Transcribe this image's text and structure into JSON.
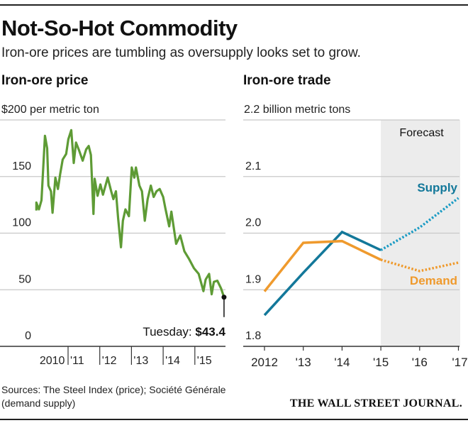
{
  "title": "Not-So-Hot Commodity",
  "subtitle": "Iron-ore prices are tumbling as oversupply looks set to grow.",
  "sources": [
    "Sources: The Steel Index (price); Société Générale",
    "(demand supply)"
  ],
  "publisher": "THE WALL STREET JOURNAL.",
  "colors": {
    "price": "#5e9b35",
    "supply": "#13789a",
    "supply_forecast": "#1a9bc4",
    "demand": "#ef9a2d",
    "forecast_shade": "#ececec",
    "grid": "#c8c8c8"
  },
  "chart_data": [
    {
      "type": "line",
      "title": "Iron-ore price",
      "ylabel": "$200 per metric ton",
      "ylim": [
        0,
        200
      ],
      "yticks": [
        {
          "v": 0,
          "label": "0"
        },
        {
          "v": 50,
          "label": "50"
        },
        {
          "v": 100,
          "label": "100"
        },
        {
          "v": 150,
          "label": "150"
        },
        {
          "v": 200,
          "label": "$200 per metric ton"
        }
      ],
      "xlim": [
        2010,
        2015.95
      ],
      "xticks": [
        {
          "v": 2010.5,
          "label": "2010",
          "tick": false
        },
        {
          "v": 2011,
          "label": "'11"
        },
        {
          "v": 2012,
          "label": "'12"
        },
        {
          "v": 2013,
          "label": "'13"
        },
        {
          "v": 2014,
          "label": "'14"
        },
        {
          "v": 2015,
          "label": "'15"
        }
      ],
      "annotation": {
        "prefix": "Tuesday: ",
        "value_label": "$43.4",
        "x": 2015.92,
        "y": 43.4
      },
      "series": [
        {
          "name": "Iron-ore price",
          "points": [
            [
              2010.0,
              120
            ],
            [
              2010.0,
              127
            ],
            [
              2010.08,
              121
            ],
            [
              2010.16,
              129
            ],
            [
              2010.27,
              186
            ],
            [
              2010.34,
              175
            ],
            [
              2010.38,
              142
            ],
            [
              2010.46,
              137
            ],
            [
              2010.51,
              118
            ],
            [
              2010.6,
              149
            ],
            [
              2010.68,
              139
            ],
            [
              2010.75,
              152
            ],
            [
              2010.83,
              165
            ],
            [
              2010.94,
              170
            ],
            [
              2011.01,
              183
            ],
            [
              2011.1,
              191
            ],
            [
              2011.18,
              162
            ],
            [
              2011.25,
              180
            ],
            [
              2011.35,
              173
            ],
            [
              2011.46,
              164
            ],
            [
              2011.57,
              174
            ],
            [
              2011.65,
              177
            ],
            [
              2011.72,
              169
            ],
            [
              2011.8,
              117
            ],
            [
              2011.84,
              148
            ],
            [
              2011.93,
              133
            ],
            [
              2012.02,
              143
            ],
            [
              2012.1,
              134
            ],
            [
              2012.25,
              149
            ],
            [
              2012.36,
              137
            ],
            [
              2012.43,
              130
            ],
            [
              2012.51,
              137
            ],
            [
              2012.58,
              113
            ],
            [
              2012.67,
              87.5
            ],
            [
              2012.73,
              111
            ],
            [
              2012.81,
              121
            ],
            [
              2012.92,
              115
            ],
            [
              2013.01,
              158
            ],
            [
              2013.09,
              149
            ],
            [
              2013.14,
              158
            ],
            [
              2013.25,
              142
            ],
            [
              2013.33,
              137
            ],
            [
              2013.42,
              111
            ],
            [
              2013.51,
              130
            ],
            [
              2013.61,
              142
            ],
            [
              2013.7,
              132
            ],
            [
              2013.79,
              137
            ],
            [
              2013.89,
              139
            ],
            [
              2014.0,
              132
            ],
            [
              2014.07,
              122
            ],
            [
              2014.19,
              106
            ],
            [
              2014.26,
              119
            ],
            [
              2014.41,
              90.6
            ],
            [
              2014.54,
              98
            ],
            [
              2014.67,
              84
            ],
            [
              2014.82,
              77
            ],
            [
              2014.97,
              69
            ],
            [
              2015.12,
              64
            ],
            [
              2015.27,
              48.8
            ],
            [
              2015.34,
              59
            ],
            [
              2015.45,
              64
            ],
            [
              2015.53,
              46
            ],
            [
              2015.6,
              57
            ],
            [
              2015.71,
              58
            ],
            [
              2015.83,
              51
            ],
            [
              2015.92,
              43.4
            ]
          ]
        }
      ]
    },
    {
      "type": "line",
      "title": "Iron-ore trade",
      "ylabel": "2.2 billion metric tons",
      "ylim": [
        1.8,
        2.2
      ],
      "yticks": [
        {
          "v": 1.8,
          "label": "1.8"
        },
        {
          "v": 1.9,
          "label": "1.9"
        },
        {
          "v": 2.0,
          "label": "2.0"
        },
        {
          "v": 2.1,
          "label": "2.1"
        },
        {
          "v": 2.2,
          "label": "2.2 billion metric tons"
        }
      ],
      "x": [
        2012,
        2013,
        2014,
        2015,
        2016,
        2017
      ],
      "xticklabels": [
        "2012",
        "'13",
        "'14",
        "'15",
        "'16",
        "'17"
      ],
      "forecast": {
        "label": "Forecast",
        "from": 2015,
        "to": 2017
      },
      "series": [
        {
          "name": "Supply",
          "values": [
            1.855,
            1.93,
            2.002,
            1.97,
            2.01,
            2.062
          ]
        },
        {
          "name": "Demand",
          "values": [
            1.897,
            1.983,
            1.986,
            1.953,
            1.933,
            1.948
          ]
        }
      ]
    }
  ]
}
